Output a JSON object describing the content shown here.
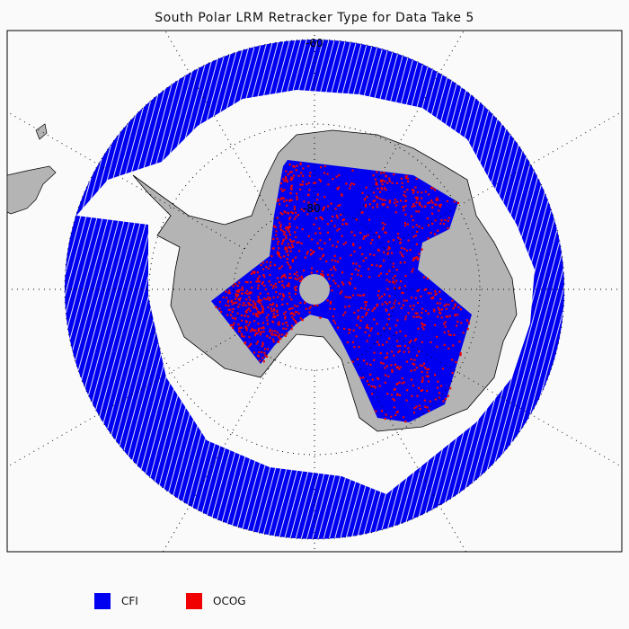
{
  "title": "South Polar LRM Retracker Type for Data Take 5",
  "map": {
    "projection": "south-polar-stereographic",
    "graticule_labels": [
      "-60",
      "-80"
    ],
    "colors": {
      "land": "#b4b4b4",
      "ocean": "#fafafa",
      "cfi": "#0000f0",
      "ocog": "#f00000"
    }
  },
  "legend": [
    {
      "label": "CFI",
      "color": "#0000f0"
    },
    {
      "label": "OCOG",
      "color": "#f00000"
    }
  ]
}
